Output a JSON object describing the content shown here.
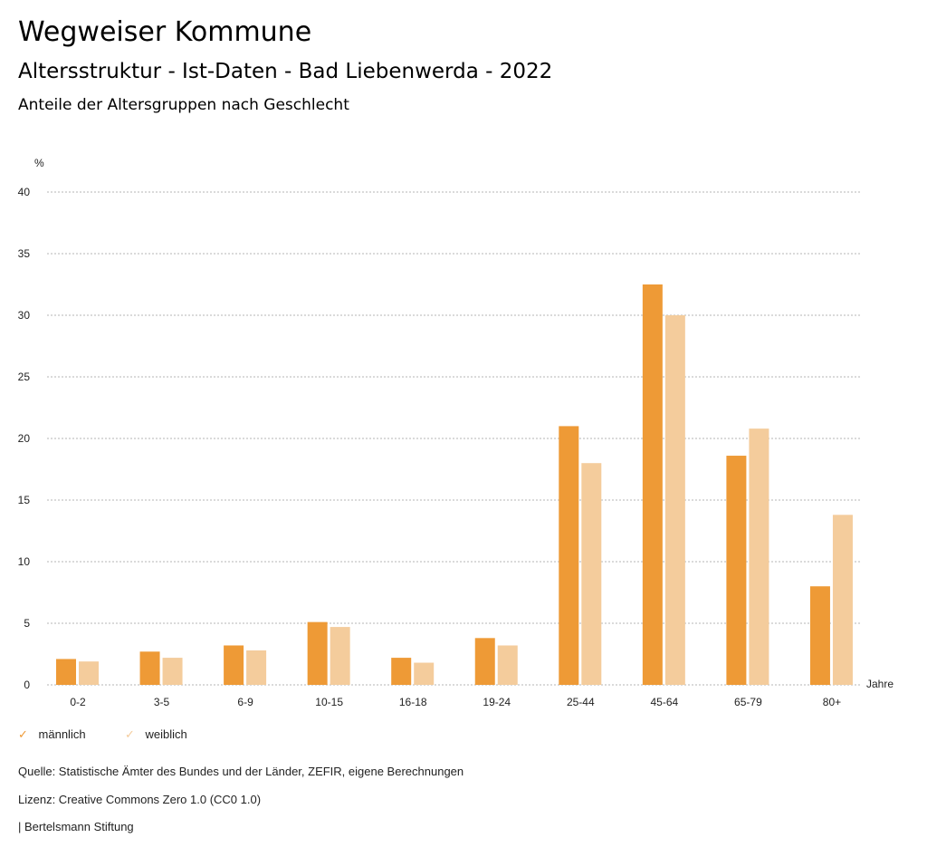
{
  "header": {
    "title": "Wegweiser Kommune",
    "subtitle": "Altersstruktur - Ist-Daten - Bad Liebenwerda - 2022",
    "description": "Anteile der Altersgruppen nach Geschlecht"
  },
  "chart_data": {
    "type": "bar",
    "title": "Anteile der Altersgruppen nach Geschlecht",
    "ylabel": "%",
    "xlabel": "Jahre",
    "ylim": [
      0,
      40
    ],
    "yticks": [
      0,
      5,
      10,
      15,
      20,
      25,
      30,
      35,
      40
    ],
    "categories": [
      "0-2",
      "3-5",
      "6-9",
      "10-15",
      "16-18",
      "19-24",
      "25-44",
      "45-64",
      "65-79",
      "80+"
    ],
    "series": [
      {
        "name": "männlich",
        "color": "#ee9a36",
        "values": [
          2.1,
          2.7,
          3.2,
          5.1,
          2.2,
          3.8,
          21.0,
          32.5,
          18.6,
          8.0
        ]
      },
      {
        "name": "weiblich",
        "color": "#f4cc9c",
        "values": [
          1.9,
          2.2,
          2.8,
          4.7,
          1.8,
          3.2,
          18.0,
          30.0,
          20.8,
          13.8
        ]
      }
    ],
    "grid": true,
    "legend": "bottom-left"
  },
  "footer": {
    "source": "Quelle: Statistische Ämter des Bundes und der Länder, ZEFIR, eigene Berechnungen",
    "license": "Lizenz: Creative Commons Zero 1.0 (CC0 1.0)",
    "brand": "| Bertelsmann Stiftung"
  }
}
